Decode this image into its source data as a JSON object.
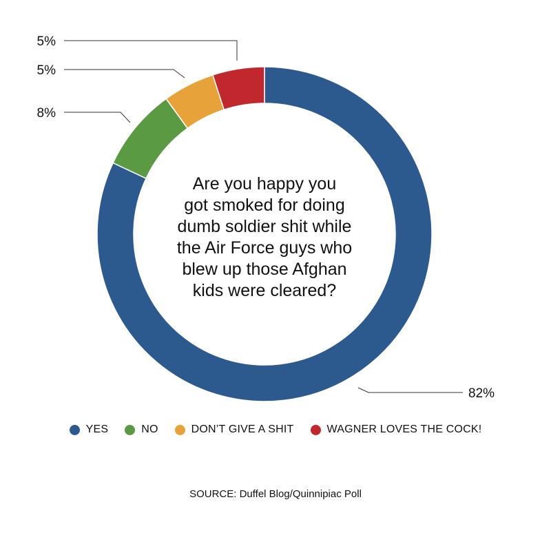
{
  "chart_data": {
    "type": "pie",
    "style": "donut",
    "title": "Are you happy you got smoked for doing dumb soldier shit while the Air Force guys who blew up those Afghan kids were cleared?",
    "title_lines": [
      "Are you happy you",
      "got smoked for doing",
      "dumb soldier shit while",
      "the Air Force guys who",
      "blew up those Afghan",
      "kids were cleared?"
    ],
    "slices": [
      {
        "label": "YES",
        "value": 82,
        "display": "82%",
        "color": "#2D5A8E"
      },
      {
        "label": "NO",
        "value": 8,
        "display": "8%",
        "color": "#5A9A43"
      },
      {
        "label": "DON’T GIVE A SHIT",
        "value": 5,
        "display": "5%",
        "color": "#E8A23A"
      },
      {
        "label": "WAGNER LOVES THE COCK!",
        "value": 5,
        "display": "5%",
        "color": "#C0282D"
      }
    ],
    "legend_position": "bottom"
  },
  "source": "SOURCE: Duffel Blog/Quinnipiac Poll"
}
